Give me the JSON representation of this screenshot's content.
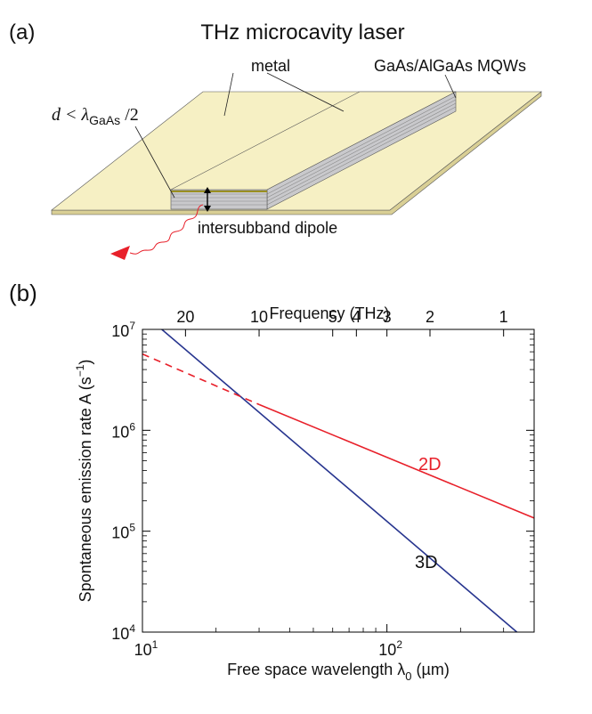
{
  "diagram": {
    "panel_label": "(a)",
    "title": "THz microcavity laser",
    "metal_label": "metal",
    "mqw_label": "GaAs/AlGaAs MQWs",
    "d_label": {
      "text": "d < λ",
      "sub": "GaAs",
      "end": " /2"
    },
    "dipole_label": "intersubband dipole"
  },
  "chart_data": {
    "type": "line",
    "panel_label": "(b)",
    "x2label": "Frequency (THz)",
    "xlabel": {
      "text": "Free space wavelength λ",
      "sub": "0",
      "end": " (µm)"
    },
    "ylabel": {
      "text": "Spontaneous emission rate A (s",
      "sup": "−1",
      "end": ")"
    },
    "xscale": "log",
    "yscale": "log",
    "xlim": [
      10,
      400
    ],
    "ylim": [
      10000,
      10000000
    ],
    "xticks": [
      {
        "value": 10,
        "label": "10",
        "sup": "1"
      },
      {
        "value": 100,
        "label": "10",
        "sup": "2"
      }
    ],
    "yticks": [
      {
        "value": 10000,
        "label": "10",
        "sup": "4"
      },
      {
        "value": 100000,
        "label": "10",
        "sup": "5"
      },
      {
        "value": 1000000,
        "label": "10",
        "sup": "6"
      },
      {
        "value": 10000000,
        "label": "10",
        "sup": "7"
      }
    ],
    "x2lim": [
      30,
      0.75
    ],
    "x2ticks": [
      20,
      10,
      5,
      4,
      3,
      2,
      1
    ],
    "series": [
      {
        "name": "3D",
        "color": "#27358f",
        "x": [
          12,
          340
        ],
        "values": [
          10000000,
          10000
        ]
      },
      {
        "name": "2D",
        "color": "#e8202a",
        "x": [
          30,
          400
        ],
        "values": [
          1800000,
          135000
        ]
      },
      {
        "color": "#e8202a",
        "dashed": true,
        "x": [
          10,
          30
        ],
        "values": [
          5700000,
          1800000
        ]
      }
    ]
  }
}
